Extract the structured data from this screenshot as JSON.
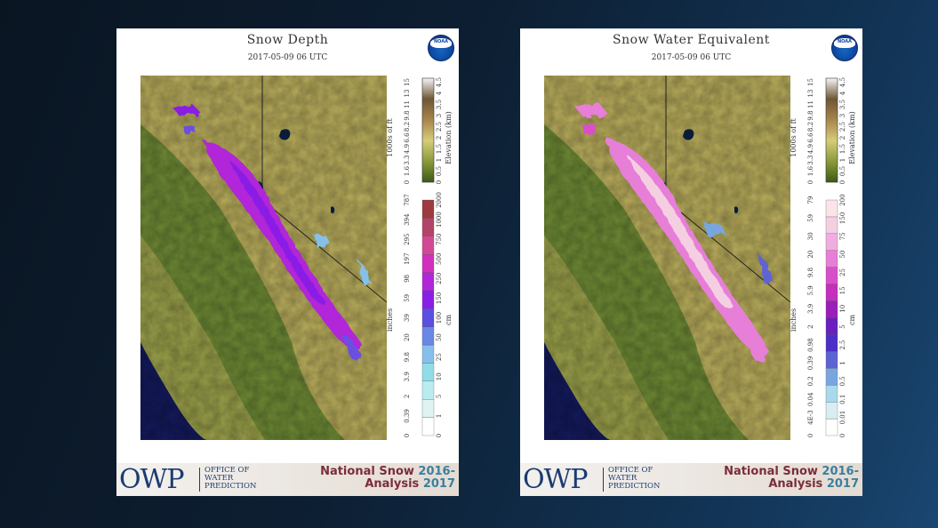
{
  "panels": [
    {
      "title": "Snow Depth",
      "date": "2017-05-09 06 UTC",
      "logo": "NOAA",
      "elevation_legend": {
        "left_unit": "1000s of ft",
        "right_unit": "Elevation (km)",
        "left_ticks": [
          "0",
          "1.6",
          "3.3",
          "4.9",
          "6.6",
          "8.2",
          "9.8",
          "11",
          "13",
          "15"
        ],
        "right_ticks": [
          "0",
          "0.5",
          "1",
          "1.5",
          "2",
          "2.5",
          "3",
          "3.5",
          "4",
          "4.5"
        ]
      },
      "value_legend": {
        "left_unit": "inches",
        "right_unit": "cm",
        "left_ticks": [
          "0",
          "0.39",
          "2",
          "3.9",
          "9.8",
          "20",
          "39",
          "59",
          "98",
          "197",
          "295",
          "394",
          "787"
        ],
        "right_ticks": [
          "0",
          "1",
          "5",
          "10",
          "25",
          "50",
          "100",
          "150",
          "250",
          "500",
          "750",
          "1000",
          "2000"
        ],
        "colors": [
          "#ffffff",
          "#dff3f3",
          "#b8ecee",
          "#8fdde6",
          "#86c0ea",
          "#6a86e6",
          "#5a4fe0",
          "#8a1ee6",
          "#b126d8",
          "#d32fbd",
          "#d34892",
          "#b24466",
          "#9c3a3f"
        ]
      },
      "layer": "snow-depth"
    },
    {
      "title": "Snow Water Equivalent",
      "date": "2017-05-09 06 UTC",
      "logo": "NOAA",
      "elevation_legend": {
        "left_unit": "1000s of ft",
        "right_unit": "Elevation (km)",
        "left_ticks": [
          "0",
          "1.6",
          "3.3",
          "4.9",
          "6.6",
          "8.2",
          "9.8",
          "11",
          "13",
          "15"
        ],
        "right_ticks": [
          "0",
          "0.5",
          "1",
          "1.5",
          "2",
          "2.5",
          "3",
          "3.5",
          "4",
          "4.5"
        ]
      },
      "value_legend": {
        "left_unit": "inches",
        "right_unit": "cm",
        "left_ticks": [
          "0",
          "4E-3",
          "0.04",
          "0.2",
          "0.39",
          "0.98",
          "2",
          "3.9",
          "5.9",
          "9.8",
          "20",
          "30",
          "59",
          "79"
        ],
        "right_ticks": [
          "0",
          "0.01",
          "0.1",
          "0.5",
          "1",
          "2.5",
          "5",
          "10",
          "15",
          "25",
          "50",
          "75",
          "150",
          "200"
        ],
        "colors": [
          "#ffffff",
          "#d8eef2",
          "#a9d9ec",
          "#7aa6e0",
          "#5e63d4",
          "#4b2fc6",
          "#6a1fc0",
          "#9a1fb8",
          "#c42fbd",
          "#d94fc8",
          "#e77ed8",
          "#f0aee0",
          "#f4cfe2",
          "#fae4ea"
        ]
      },
      "layer": "swe"
    }
  ],
  "footer": {
    "logo_text": "OWP",
    "office_lines": [
      "OFFICE OF",
      "WATER",
      "PREDICTION"
    ],
    "product_line1": "National Snow",
    "year_line1": "2016-",
    "product_line2": "Analysis",
    "year_line2": "2017"
  },
  "colors": {
    "background": "#0d1f33",
    "valley": "#6e8a35",
    "mountains": "#b9ad5c",
    "ocean": "#141a5c",
    "lake": "#0b1c3a"
  }
}
